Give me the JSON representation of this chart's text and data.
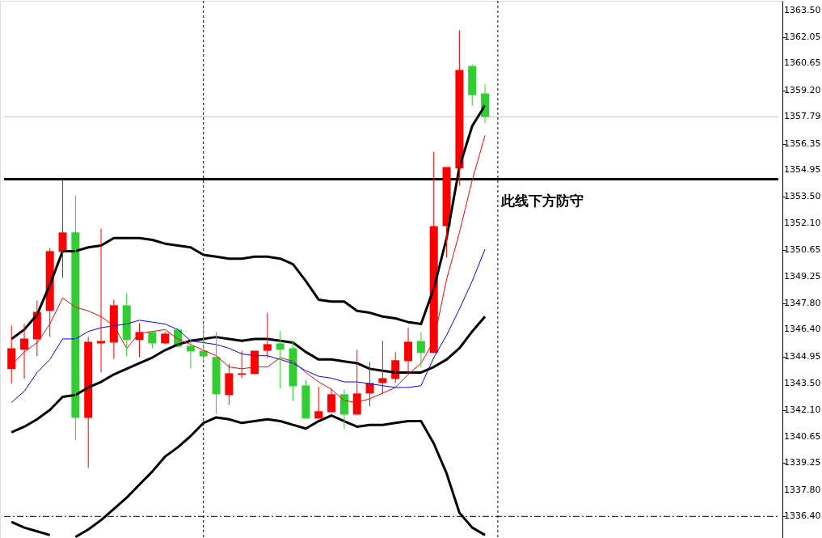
{
  "chart_data": {
    "type": "candlestick",
    "categories": [
      null,
      null,
      null,
      null,
      null,
      null,
      null,
      null,
      null,
      null,
      null,
      null,
      null,
      null,
      null,
      null,
      null,
      null,
      null,
      null,
      null,
      null,
      null,
      null,
      null,
      null,
      null,
      null,
      null,
      null,
      null,
      null,
      null,
      null,
      null,
      null,
      null,
      null
    ],
    "ohlc": [
      [
        1344.28,
        1346.62,
        1343.5,
        1345.4
      ],
      [
        1345.32,
        1346.7,
        1343.76,
        1345.92
      ],
      [
        1345.88,
        1347.96,
        1344.97,
        1347.35
      ],
      [
        1347.4,
        1350.77,
        1346.01,
        1350.6
      ],
      [
        1350.56,
        1354.41,
        1349.17,
        1351.6
      ],
      [
        1351.6,
        1353.59,
        1340.47,
        1341.68
      ],
      [
        1341.68,
        1346.01,
        1339.0,
        1345.75
      ],
      [
        1345.66,
        1351.81,
        1344.11,
        1345.79
      ],
      [
        1345.71,
        1348.0,
        1344.84,
        1347.7
      ],
      [
        1347.7,
        1348.35,
        1344.97,
        1345.84
      ],
      [
        1345.84,
        1346.75,
        1344.93,
        1346.27
      ],
      [
        1346.27,
        1346.31,
        1345.4,
        1345.66
      ],
      [
        1345.66,
        1346.27,
        1345.62,
        1346.18
      ],
      [
        1346.4,
        1346.49,
        1345.45,
        1345.49
      ],
      [
        1345.53,
        1345.92,
        1344.32,
        1345.23
      ],
      [
        1345.27,
        1346.7,
        1344.63,
        1344.97
      ],
      [
        1344.93,
        1346.27,
        1341.9,
        1342.94
      ],
      [
        1342.89,
        1344.58,
        1342.37,
        1344.06
      ],
      [
        1343.98,
        1345.27,
        1343.8,
        1344.06
      ],
      [
        1344.02,
        1345.27,
        1344.02,
        1345.27
      ],
      [
        1345.27,
        1347.31,
        1344.89,
        1345.62
      ],
      [
        1345.66,
        1346.31,
        1343.24,
        1345.32
      ],
      [
        1345.4,
        1345.79,
        1342.59,
        1343.37
      ],
      [
        1343.41,
        1343.72,
        1341.64,
        1341.64
      ],
      [
        1341.64,
        1343.33,
        1341.64,
        1342.03
      ],
      [
        1341.98,
        1343.24,
        1341.98,
        1342.94
      ],
      [
        1342.94,
        1343.2,
        1341.08,
        1341.85
      ],
      [
        1341.85,
        1345.32,
        1341.85,
        1342.98
      ],
      [
        1342.98,
        1344.67,
        1342.29,
        1343.54
      ],
      [
        1343.54,
        1345.79,
        1342.94,
        1343.8
      ],
      [
        1343.76,
        1345.19,
        1343.54,
        1344.76
      ],
      [
        1344.71,
        1346.49,
        1344.02,
        1345.75
      ],
      [
        1345.79,
        1346.27,
        1344.37,
        1345.15
      ],
      [
        1345.15,
        1355.92,
        1345.15,
        1351.94
      ],
      [
        1351.94,
        1355.1,
        1350.25,
        1355.1
      ],
      [
        1355.02,
        1362.42,
        1354.11,
        1360.3
      ],
      [
        1360.51,
        1360.6,
        1358.39,
        1358.95
      ],
      [
        1359.04,
        1359.52,
        1357.44,
        1357.79
      ]
    ],
    "colors": [
      "#ff0000",
      "#ff0000",
      "#ff0000",
      "#ff0000",
      "#ff0000",
      "#32cd32",
      "#ff0000",
      "#ff0000",
      "#ff0000",
      "#32cd32",
      "#ff0000",
      "#32cd32",
      "#ff0000",
      "#32cd32",
      "#32cd32",
      "#32cd32",
      "#32cd32",
      "#ff0000",
      "#ff0000",
      "#ff0000",
      "#ff0000",
      "#32cd32",
      "#32cd32",
      "#32cd32",
      "#ff0000",
      "#ff0000",
      "#32cd32",
      "#ff0000",
      "#ff0000",
      "#ff0000",
      "#ff0000",
      "#ff0000",
      "#32cd32",
      "#ff0000",
      "#ff0000",
      "#ff0000",
      "#32cd32",
      "#32cd32"
    ],
    "series": [
      {
        "type": "line",
        "color": "#000000",
        "values": [
          1345.9,
          1346.4,
          1347.2,
          1348.8,
          1350.6,
          1350.6,
          1350.8,
          1350.9,
          1351.3,
          1351.3,
          1351.3,
          1351.2,
          1351.0,
          1350.9,
          1350.8,
          1350.4,
          1350.3,
          1350.2,
          1350.2,
          1350.3,
          1350.3,
          1350.2,
          1349.9,
          1349.0,
          1348.0,
          1347.9,
          1347.9,
          1347.4,
          1347.3,
          1347.1,
          1347.0,
          1346.8,
          1346.7,
          1348.6,
          1351.3,
          1355.1,
          1357.3,
          1358.4
        ]
      },
      {
        "type": "line",
        "color": "#000000",
        "values": [
          1340.9,
          1341.2,
          1341.6,
          1342.1,
          1342.8,
          1342.9,
          1343.3,
          1343.6,
          1344.0,
          1344.3,
          1344.6,
          1344.9,
          1345.3,
          1345.6,
          1345.8,
          1345.9,
          1346.0,
          1345.9,
          1345.8,
          1345.9,
          1345.9,
          1345.8,
          1345.7,
          1345.2,
          1344.8,
          1344.8,
          1344.7,
          1344.6,
          1344.3,
          1344.2,
          1344.1,
          1344.1,
          1344.1,
          1344.4,
          1344.8,
          1345.4,
          1346.3,
          1347.1
        ]
      },
      {
        "type": "line",
        "color": "#000000",
        "values": [
          1336.1,
          1335.8,
          1335.6,
          1335.4,
          null,
          1335.3,
          1335.7,
          1336.2,
          1336.8,
          1337.4,
          1338.1,
          1338.8,
          1339.6,
          1340.1,
          1340.7,
          1341.4,
          1341.7,
          1341.6,
          1341.4,
          1341.5,
          1341.6,
          1341.5,
          1341.3,
          1341.1,
          1341.5,
          1341.8,
          1341.5,
          1341.2,
          1341.3,
          1341.3,
          1341.4,
          1341.5,
          1341.5,
          1340.3,
          1338.7,
          1336.6,
          1335.8,
          1335.4
        ]
      },
      {
        "type": "line",
        "color": "#ff0000",
        "values": [
          1344.5,
          1345.2,
          1345.7,
          1346.7,
          1348.1,
          1347.6,
          1347.4,
          1347.1,
          1346.6,
          1345.4,
          1346.2,
          1346.3,
          1346.4,
          1345.9,
          1345.6,
          1345.3,
          1345.0,
          1344.4,
          1344.3,
          1344.4,
          1344.4,
          1344.9,
          1344.7,
          1344.1,
          1343.6,
          1343.2,
          1342.6,
          1342.5,
          1342.7,
          1343.0,
          1343.3,
          1344.0,
          1344.6,
          1345.8,
          1349.1,
          1351.6,
          1354.4,
          1356.8
        ]
      },
      {
        "type": "line",
        "color": "#0000ff",
        "values": [
          1342.5,
          1343.1,
          1344.1,
          1344.8,
          1345.9,
          1345.9,
          1346.3,
          1346.5,
          1346.6,
          1346.7,
          1346.9,
          1346.8,
          1346.7,
          1346.4,
          1345.8,
          1345.7,
          1345.6,
          1345.4,
          1345.1,
          1345.0,
          1345.0,
          1344.8,
          1344.6,
          1344.2,
          1343.9,
          1343.8,
          1343.6,
          1343.6,
          1343.5,
          1343.4,
          1343.3,
          1343.3,
          1343.4,
          1344.9,
          1346.1,
          1347.5,
          1349.0,
          1350.7
        ]
      }
    ],
    "ylim": [
      1335.2,
      1364.0
    ],
    "yticks": [
      {
        "value": 1363.5,
        "label": "1363.50"
      },
      {
        "value": 1362.05,
        "label": "1362.05"
      },
      {
        "value": 1360.65,
        "label": "1360.65"
      },
      {
        "value": 1359.2,
        "label": "1359.20"
      },
      {
        "value": 1357.79,
        "label": "1357.79"
      },
      {
        "value": 1356.35,
        "label": "1356.35"
      },
      {
        "value": 1354.95,
        "label": "1354.95"
      },
      {
        "value": 1353.5,
        "label": "1353.50"
      },
      {
        "value": 1352.1,
        "label": "1352.10"
      },
      {
        "value": 1350.65,
        "label": "1350.65"
      },
      {
        "value": 1349.25,
        "label": "1349.25"
      },
      {
        "value": 1347.8,
        "label": "1347.80"
      },
      {
        "value": 1346.4,
        "label": "1346.40"
      },
      {
        "value": 1344.95,
        "label": "1344.95"
      },
      {
        "value": 1343.5,
        "label": "1343.50"
      },
      {
        "value": 1342.1,
        "label": "1342.10"
      },
      {
        "value": 1340.65,
        "label": "1340.65"
      },
      {
        "value": 1339.25,
        "label": "1339.25"
      },
      {
        "value": 1337.8,
        "label": "1337.80"
      },
      {
        "value": 1336.4,
        "label": "1336.40"
      }
    ],
    "ref_lines": [
      {
        "axis": "y",
        "value": 1354.45,
        "label": "此线下方防守",
        "color": "#000000",
        "line_style": "solid"
      },
      {
        "axis": "y",
        "value": 1357.79,
        "color": "#c0c0c0",
        "line_style": "solid"
      },
      {
        "axis": "y",
        "value": 1336.4,
        "color": "#000000",
        "line_style": "dashed"
      }
    ],
    "tick_labels": "y"
  }
}
